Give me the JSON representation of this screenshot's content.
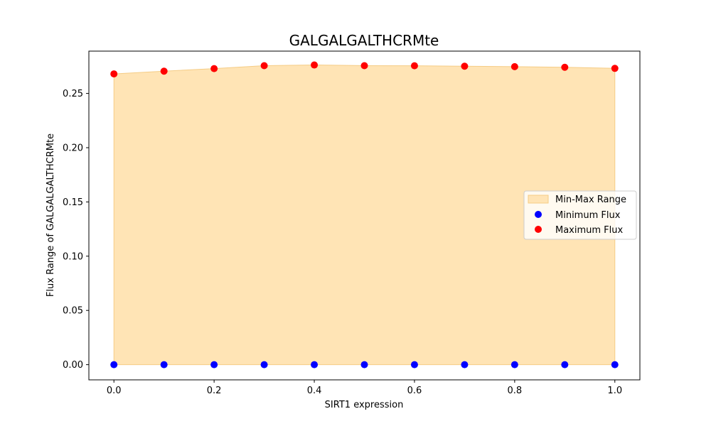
{
  "chart_data": {
    "type": "scatter",
    "title": "GALGALGALTHCRMte",
    "xlabel": "SIRT1 expression",
    "ylabel": "Flux Range of GALGALGALTHCRMte",
    "xlim": [
      -0.05,
      1.05
    ],
    "ylim": [
      -0.014,
      0.289
    ],
    "xticks": [
      0.0,
      0.2,
      0.4,
      0.6,
      0.8,
      1.0
    ],
    "xtick_labels": [
      "0.0",
      "0.2",
      "0.4",
      "0.6",
      "0.8",
      "1.0"
    ],
    "yticks": [
      0.0,
      0.05,
      0.1,
      0.15,
      0.2,
      0.25
    ],
    "ytick_labels": [
      "0.00",
      "0.05",
      "0.10",
      "0.15",
      "0.20",
      "0.25"
    ],
    "x": [
      0.0,
      0.1,
      0.2,
      0.3,
      0.4,
      0.5,
      0.6,
      0.7,
      0.8,
      0.9,
      1.0
    ],
    "series": [
      {
        "name": "Min-Max Range",
        "kind": "fill_between",
        "color": "#FFE4B5",
        "edge_color": "#F5CC85",
        "alpha": 1
      },
      {
        "name": "Minimum Flux",
        "kind": "scatter",
        "color": "#0000FF",
        "values": [
          0.0,
          0.0,
          0.0,
          0.0,
          0.0,
          0.0,
          0.0,
          0.0,
          0.0,
          0.0,
          0.0
        ]
      },
      {
        "name": "Maximum Flux",
        "kind": "scatter",
        "color": "#FF0000",
        "values": [
          0.268,
          0.2705,
          0.2729,
          0.2756,
          0.2762,
          0.2756,
          0.2755,
          0.2751,
          0.2747,
          0.2741,
          0.2731
        ]
      }
    ],
    "legend": {
      "position": "center-right"
    },
    "grid": false
  }
}
